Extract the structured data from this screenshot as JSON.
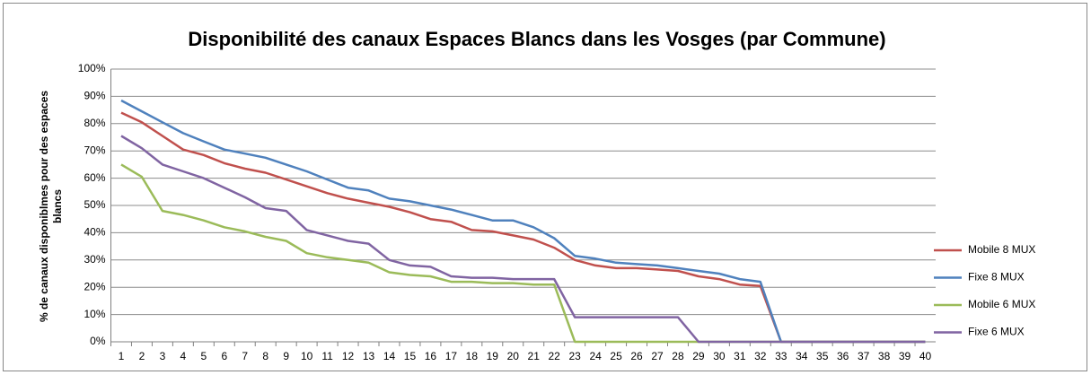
{
  "chart_data": {
    "type": "line",
    "title": "Disponibilité des canaux Espaces Blancs dans les Vosges (par Commune)",
    "y_label": "% de canaux disponiblmes pour des espaces blancs",
    "categories": [
      "1",
      "2",
      "3",
      "4",
      "5",
      "6",
      "7",
      "8",
      "9",
      "10",
      "11",
      "12",
      "13",
      "14",
      "15",
      "16",
      "17",
      "18",
      "19",
      "20",
      "21",
      "22",
      "23",
      "24",
      "25",
      "26",
      "27",
      "28",
      "29",
      "30",
      "31",
      "32",
      "33",
      "34",
      "35",
      "36",
      "37",
      "38",
      "39",
      "40"
    ],
    "series": [
      {
        "name": "Mobile 8 MUX",
        "color": "#c0504d",
        "values": [
          84,
          80.5,
          75.5,
          70.5,
          68.5,
          65.5,
          63.5,
          62,
          59.5,
          57,
          54.5,
          52.5,
          51,
          49.5,
          47.5,
          45,
          44,
          41,
          40.5,
          39,
          37.5,
          34.5,
          30,
          28,
          27,
          27,
          26.5,
          26,
          24,
          23,
          21,
          20.5,
          0,
          0,
          0,
          0,
          0,
          0,
          0,
          0
        ]
      },
      {
        "name": "Fixe 8 MUX",
        "color": "#4f81bd",
        "values": [
          88.5,
          84.5,
          80.5,
          76.5,
          73.5,
          70.5,
          69,
          67.5,
          65,
          62.5,
          59.5,
          56.5,
          55.5,
          52.5,
          51.5,
          50,
          48.5,
          46.5,
          44.5,
          44.5,
          42,
          38,
          31.5,
          30.5,
          29,
          28.5,
          28,
          27,
          26,
          25,
          23,
          22,
          0,
          0,
          0,
          0,
          0,
          0,
          0,
          0
        ]
      },
      {
        "name": "Mobile 6 MUX",
        "color": "#9bbb59",
        "values": [
          65,
          60.5,
          48,
          46.5,
          44.5,
          42,
          40.5,
          38.5,
          37,
          32.5,
          31,
          30,
          29,
          25.5,
          24.5,
          24,
          22,
          22,
          21.5,
          21.5,
          21,
          21,
          0,
          0,
          0,
          0,
          0,
          0,
          0,
          0,
          0,
          0,
          0,
          0,
          0,
          0,
          0,
          0,
          0,
          0
        ]
      },
      {
        "name": "Fixe 6 MUX",
        "color": "#8064a2",
        "values": [
          75.5,
          71,
          65,
          62.5,
          60,
          56.5,
          53,
          49,
          48,
          41,
          39,
          37,
          36,
          30,
          28,
          27.5,
          24,
          23.5,
          23.5,
          23,
          23,
          23,
          9,
          9,
          9,
          9,
          9,
          9,
          0,
          0,
          0,
          0,
          0,
          0,
          0,
          0,
          0,
          0,
          0,
          0
        ]
      }
    ],
    "ylim": [
      0,
      100
    ],
    "yticks": [
      {
        "value": 0,
        "label": "0%"
      },
      {
        "value": 10,
        "label": "10%"
      },
      {
        "value": 20,
        "label": "20%"
      },
      {
        "value": 30,
        "label": "30%"
      },
      {
        "value": 40,
        "label": "40%"
      },
      {
        "value": 50,
        "label": "50%"
      },
      {
        "value": 60,
        "label": "60%"
      },
      {
        "value": 70,
        "label": "70%"
      },
      {
        "value": 80,
        "label": "80%"
      },
      {
        "value": 90,
        "label": "90%"
      },
      {
        "value": 100,
        "label": "100%"
      }
    ],
    "grid": true,
    "legend": "right"
  }
}
